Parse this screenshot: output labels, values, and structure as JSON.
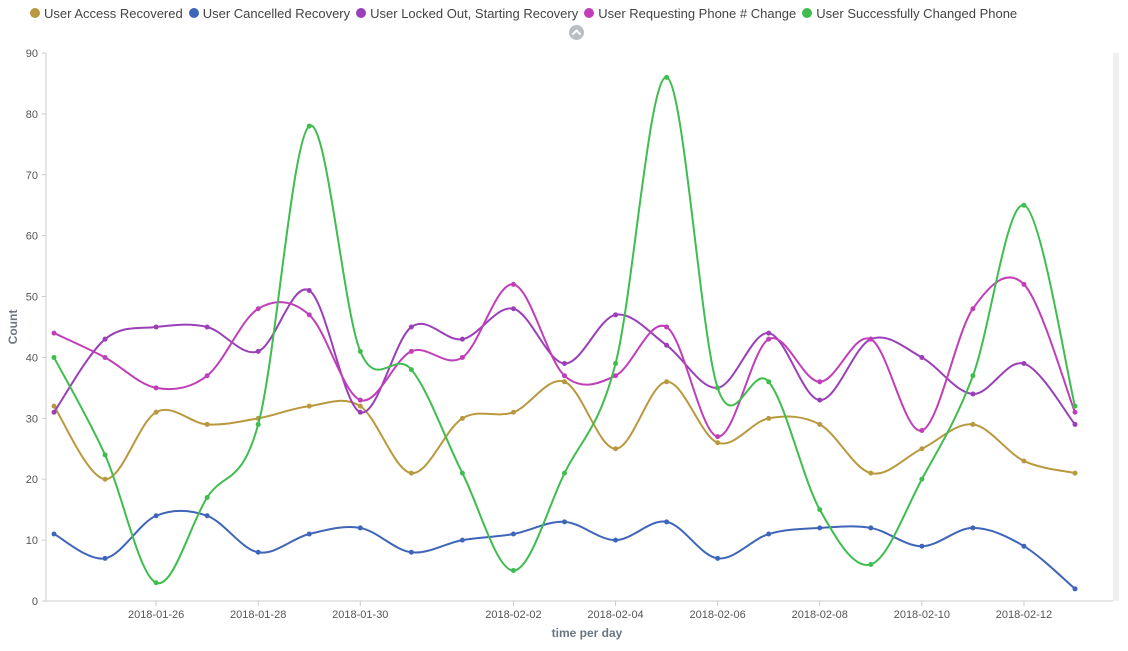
{
  "legend_collapse_icon": "chevron-up-icon",
  "chart_data": {
    "type": "line",
    "xlabel": "time per day",
    "ylabel": "Count",
    "ylim": [
      0,
      90
    ],
    "yticks": [
      0,
      10,
      20,
      30,
      40,
      50,
      60,
      70,
      80,
      90
    ],
    "x": [
      "2018-01-24",
      "2018-01-25",
      "2018-01-26",
      "2018-01-27",
      "2018-01-28",
      "2018-01-29",
      "2018-01-30",
      "2018-01-31",
      "2018-02-01",
      "2018-02-02",
      "2018-02-03",
      "2018-02-04",
      "2018-02-05",
      "2018-02-06",
      "2018-02-07",
      "2018-02-08",
      "2018-02-09",
      "2018-02-10",
      "2018-02-11",
      "2018-02-12",
      "2018-02-13"
    ],
    "xticks": [
      "2018-01-26",
      "2018-01-28",
      "2018-01-30",
      "2018-02-02",
      "2018-02-04",
      "2018-02-06",
      "2018-02-08",
      "2018-02-10",
      "2018-02-12"
    ],
    "legend_position": "top-left",
    "series": [
      {
        "name": "User Access Recovered",
        "color": "#b9993f",
        "values": [
          32,
          20,
          31,
          29,
          30,
          32,
          32,
          21,
          30,
          31,
          36,
          25,
          36,
          26,
          30,
          29,
          21,
          25,
          29,
          23,
          21
        ]
      },
      {
        "name": "User Cancelled Recovery",
        "color": "#3f65b9",
        "values": [
          11,
          7,
          14,
          14,
          8,
          11,
          12,
          8,
          10,
          11,
          13,
          10,
          13,
          7,
          11,
          12,
          12,
          9,
          12,
          9,
          2
        ]
      },
      {
        "name": "User Locked Out, Starting Recovery",
        "color": "#9b3fb9",
        "values": [
          31,
          43,
          45,
          45,
          41,
          51,
          31,
          45,
          43,
          48,
          39,
          47,
          42,
          35,
          44,
          33,
          43,
          40,
          34,
          39,
          29
        ]
      },
      {
        "name": "User Requesting Phone # Change",
        "color": "#c03fb9",
        "values": [
          44,
          40,
          35,
          37,
          48,
          47,
          33,
          41,
          40,
          52,
          37,
          37,
          45,
          27,
          43,
          36,
          43,
          28,
          48,
          52,
          31
        ]
      },
      {
        "name": "User Successfully Changed Phone",
        "color": "#3fbd4f",
        "values": [
          40,
          24,
          3,
          17,
          29,
          78,
          41,
          38,
          21,
          5,
          21,
          39,
          86,
          35,
          36,
          15,
          6,
          20,
          37,
          65,
          32
        ]
      }
    ]
  }
}
